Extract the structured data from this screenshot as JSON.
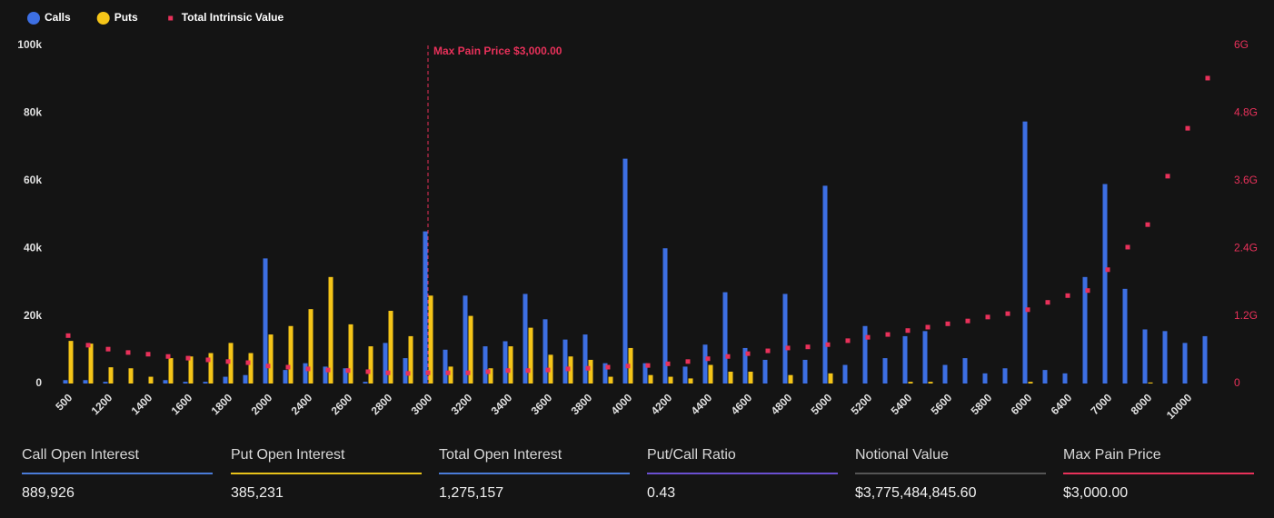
{
  "chart_data": {
    "type": "bar",
    "categories": [
      "500",
      null,
      "1200",
      null,
      "1400",
      null,
      "1600",
      null,
      "1800",
      null,
      "2000",
      null,
      "2400",
      null,
      "2600",
      null,
      "2800",
      null,
      "3000",
      null,
      "3200",
      null,
      "3400",
      null,
      "3600",
      null,
      "3800",
      null,
      "4000",
      null,
      "4200",
      null,
      "4400",
      null,
      "4600",
      null,
      "4800",
      null,
      "5000",
      null,
      "5200",
      null,
      "5400",
      null,
      "5600",
      null,
      "5800",
      null,
      "6000",
      null,
      "6400",
      null,
      "7000",
      null,
      "8000",
      null,
      "10000",
      null
    ],
    "series": [
      {
        "name": "Calls",
        "color": "#3d6fe3",
        "values": [
          1000,
          1000,
          500,
          0,
          0,
          1000,
          500,
          500,
          2000,
          2500,
          37000,
          4000,
          6000,
          5000,
          4500,
          500,
          12000,
          7500,
          45000,
          10000,
          26000,
          11000,
          12500,
          26500,
          19000,
          13000,
          14500,
          6000,
          66500,
          6000,
          40000,
          5000,
          11500,
          27000,
          10500,
          7000,
          26500,
          7000,
          58500,
          5500,
          17000,
          7500,
          14000,
          15500,
          5500,
          7500,
          3000,
          4500,
          77500,
          4000,
          3000,
          31500,
          59000,
          28000,
          16000,
          15500,
          12000,
          14000
        ]
      },
      {
        "name": "Puts",
        "color": "#f5c518",
        "values": [
          12600,
          11800,
          4800,
          4500,
          2000,
          7500,
          8000,
          9000,
          12000,
          9000,
          14500,
          17000,
          22000,
          31500,
          17500,
          11000,
          21500,
          14000,
          26000,
          5000,
          20000,
          4500,
          11000,
          16500,
          8500,
          8000,
          7000,
          2000,
          10500,
          2500,
          2000,
          1500,
          5500,
          3500,
          3500,
          0,
          2500,
          0,
          3000,
          0,
          0,
          0,
          500,
          500,
          0,
          0,
          0,
          0,
          500,
          0,
          0,
          0,
          0,
          0,
          300,
          0,
          0,
          0
        ]
      },
      {
        "name": "Total Intrinsic Value",
        "type": "scatter",
        "axis": "y2",
        "color": "#e8315a",
        "values": [
          850000000,
          680000000,
          610000000,
          550000000,
          520000000,
          480000000,
          450000000,
          420000000,
          390000000,
          370000000,
          310000000,
          290000000,
          260000000,
          240000000,
          230000000,
          210000000,
          190000000,
          180000000,
          190000000,
          190000000,
          190000000,
          210000000,
          230000000,
          230000000,
          240000000,
          260000000,
          270000000,
          290000000,
          310000000,
          320000000,
          350000000,
          390000000,
          440000000,
          480000000,
          530000000,
          580000000,
          630000000,
          650000000,
          690000000,
          760000000,
          820000000,
          870000000,
          940000000,
          1000000000,
          1060000000,
          1110000000,
          1180000000,
          1240000000,
          1310000000,
          1440000000,
          1560000000,
          1650000000,
          2020000000,
          2420000000,
          2820000000,
          3680000000,
          4530000000,
          5420000000
        ]
      }
    ],
    "ylim": [
      0,
      100000
    ],
    "yticks": [
      0,
      {
        "value": 20000,
        "label": "20k"
      },
      {
        "value": 40000,
        "label": "40k"
      },
      {
        "value": 60000,
        "label": "60k"
      },
      {
        "value": 80000,
        "label": "80k"
      },
      {
        "value": 100000,
        "label": "100k"
      }
    ],
    "y2lim": [
      0,
      6000000000
    ],
    "y2ticks": [
      0,
      {
        "value": 1200000000,
        "label": "1.2G"
      },
      {
        "value": 2400000000,
        "label": "2.4G"
      },
      {
        "value": 3600000000,
        "label": "3.6G"
      },
      {
        "value": 4800000000,
        "label": "4.8G"
      },
      {
        "value": 6000000000,
        "label": "6G"
      }
    ],
    "grid": false,
    "legend": "top-left",
    "annotation": {
      "text": "Max Pain Price $3,000.00",
      "x": "3000",
      "color": "#e8315a"
    }
  },
  "stats": [
    {
      "label": "Call Open Interest",
      "value": "889,926",
      "color": "#4a7bd8"
    },
    {
      "label": "Put Open Interest",
      "value": "385,231",
      "color": "#e8c21a"
    },
    {
      "label": "Total Open Interest",
      "value": "1,275,157",
      "color": "#4a7bd8"
    },
    {
      "label": "Put/Call Ratio",
      "value": "0.43",
      "color": "#6a4fd0"
    },
    {
      "label": "Notional Value",
      "value": "$3,775,484,845.60",
      "color": "#555555"
    },
    {
      "label": "Max Pain Price",
      "value": "$3,000.00",
      "color": "#e8315a"
    }
  ]
}
